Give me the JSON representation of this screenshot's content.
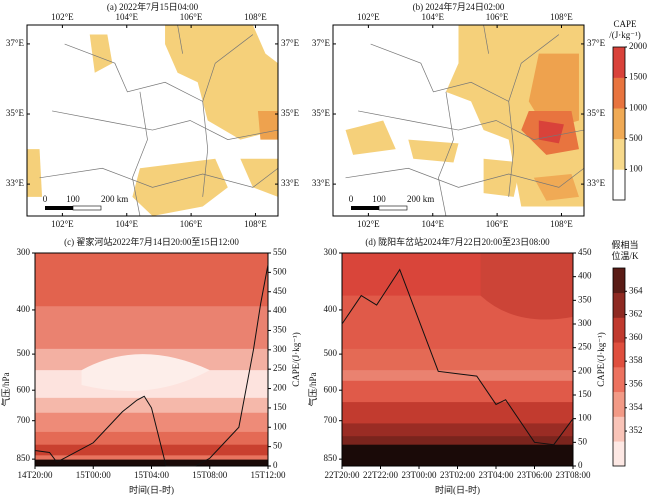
{
  "chart_data": [
    {
      "type": "map",
      "title": "(a) 2022年7月15日04:00",
      "xlim": [
        100.9,
        108.7
      ],
      "ylim": [
        32.09,
        37.54
      ],
      "xticks": [
        {
          "value": 102,
          "label": "102°E"
        },
        {
          "value": 104,
          "label": "104°E"
        },
        {
          "value": 106,
          "label": "106°E"
        },
        {
          "value": 108,
          "label": "108°E"
        }
      ],
      "yticks": [
        {
          "value": 33,
          "label": "33°E"
        },
        {
          "value": 35,
          "label": "35°E"
        },
        {
          "value": 37,
          "label": "37°E"
        }
      ],
      "scale_labels": [
        "0",
        "100",
        "200 km"
      ]
    },
    {
      "type": "map",
      "title": "(b) 2024年7月24日02:00",
      "xlim": [
        100.9,
        108.7
      ],
      "ylim": [
        32.09,
        37.54
      ],
      "xticks": [
        {
          "value": 102,
          "label": "102°E"
        },
        {
          "value": 104,
          "label": "104°E"
        },
        {
          "value": 106,
          "label": "106°E"
        },
        {
          "value": 108,
          "label": "108°E"
        }
      ],
      "yticks": [
        {
          "value": 33,
          "label": "33°E"
        },
        {
          "value": 35,
          "label": "35°E"
        },
        {
          "value": 37,
          "label": "37°E"
        }
      ],
      "scale_labels": [
        "0",
        "100",
        "200 km"
      ]
    },
    {
      "type": "contour",
      "title": "(c) 翟家河站2022年7月14日20:00至15日12:00",
      "x_label": "时间(日-时)",
      "y_label": "气压/hPa",
      "y2_label": "CAPE/(J·kg⁻¹)",
      "xlim": [
        0,
        16
      ],
      "xticks": [
        {
          "value": 0,
          "label": "14T20:00"
        },
        {
          "value": 4,
          "label": "15T00:00"
        },
        {
          "value": 8,
          "label": "15T04:00"
        },
        {
          "value": 12,
          "label": "15T08:00"
        },
        {
          "value": 16,
          "label": "15T12:00"
        }
      ],
      "ylim": [
        300,
        880
      ],
      "log_y": true,
      "inverted_y": true,
      "yticks": [
        300,
        400,
        500,
        600,
        700,
        850
      ],
      "y2lim": [
        0,
        550
      ],
      "y2ticks": [
        0,
        50,
        100,
        150,
        200,
        250,
        300,
        350,
        400,
        450,
        500,
        550
      ],
      "series": [
        {
          "name": "CAPE",
          "color": "#111111",
          "axis": "y2",
          "x": [
            0,
            1,
            1.5,
            2,
            4,
            5,
            6,
            7,
            7.5,
            8,
            9,
            11,
            12,
            13,
            14,
            15,
            15.5,
            16
          ],
          "values": [
            40,
            35,
            10,
            20,
            60,
            100,
            140,
            170,
            180,
            150,
            0,
            0,
            20,
            60,
            100,
            300,
            420,
            520
          ]
        }
      ]
    },
    {
      "type": "contour",
      "title": "(d) 陇阳车岔站2024年7月22日20:00至23日08:00",
      "x_label": "时间(日-时)",
      "y_label": "气压/hPa",
      "y2_label": "CAPE/(J·kg⁻¹)",
      "xlim": [
        0,
        12
      ],
      "xticks": [
        {
          "value": 0,
          "label": "22T20:00"
        },
        {
          "value": 2,
          "label": "22T22:00"
        },
        {
          "value": 4,
          "label": "23T00:00"
        },
        {
          "value": 6,
          "label": "23T02:00"
        },
        {
          "value": 8,
          "label": "23T04:00"
        },
        {
          "value": 10,
          "label": "23T06:00"
        },
        {
          "value": 12,
          "label": "23T08:00"
        }
      ],
      "ylim": [
        300,
        880
      ],
      "log_y": true,
      "inverted_y": true,
      "yticks": [
        300,
        400,
        500,
        600,
        700,
        850
      ],
      "y2lim": [
        0,
        450
      ],
      "y2ticks": [
        0,
        50,
        100,
        150,
        200,
        250,
        300,
        350,
        400,
        450
      ],
      "series": [
        {
          "name": "CAPE",
          "color": "#111111",
          "axis": "y2",
          "x": [
            0,
            1,
            1.8,
            3,
            5,
            6,
            7,
            8,
            8.5,
            10,
            11,
            12
          ],
          "values": [
            300,
            360,
            340,
            415,
            200,
            195,
            190,
            130,
            140,
            50,
            45,
            100
          ]
        }
      ]
    },
    {
      "type": "colorbar",
      "title": [
        "CAPE",
        "/(J·kg⁻¹)"
      ],
      "ticks": [
        100,
        500,
        1000,
        1500,
        2000
      ],
      "colors": [
        "#ffffff",
        "#f7d98b",
        "#f0aa55",
        "#e8743f",
        "#d9423a"
      ]
    },
    {
      "type": "colorbar",
      "title": [
        "假相当",
        "位温/K"
      ],
      "ylim": [
        349,
        366
      ],
      "ticks": [
        352,
        354,
        356,
        358,
        360,
        362,
        364
      ],
      "colors": [
        "#fde8e4",
        "#f9c4b8",
        "#f29a86",
        "#ec725f",
        "#df4f3e",
        "#c03a2e",
        "#8e2a22",
        "#5a1c16"
      ]
    }
  ]
}
